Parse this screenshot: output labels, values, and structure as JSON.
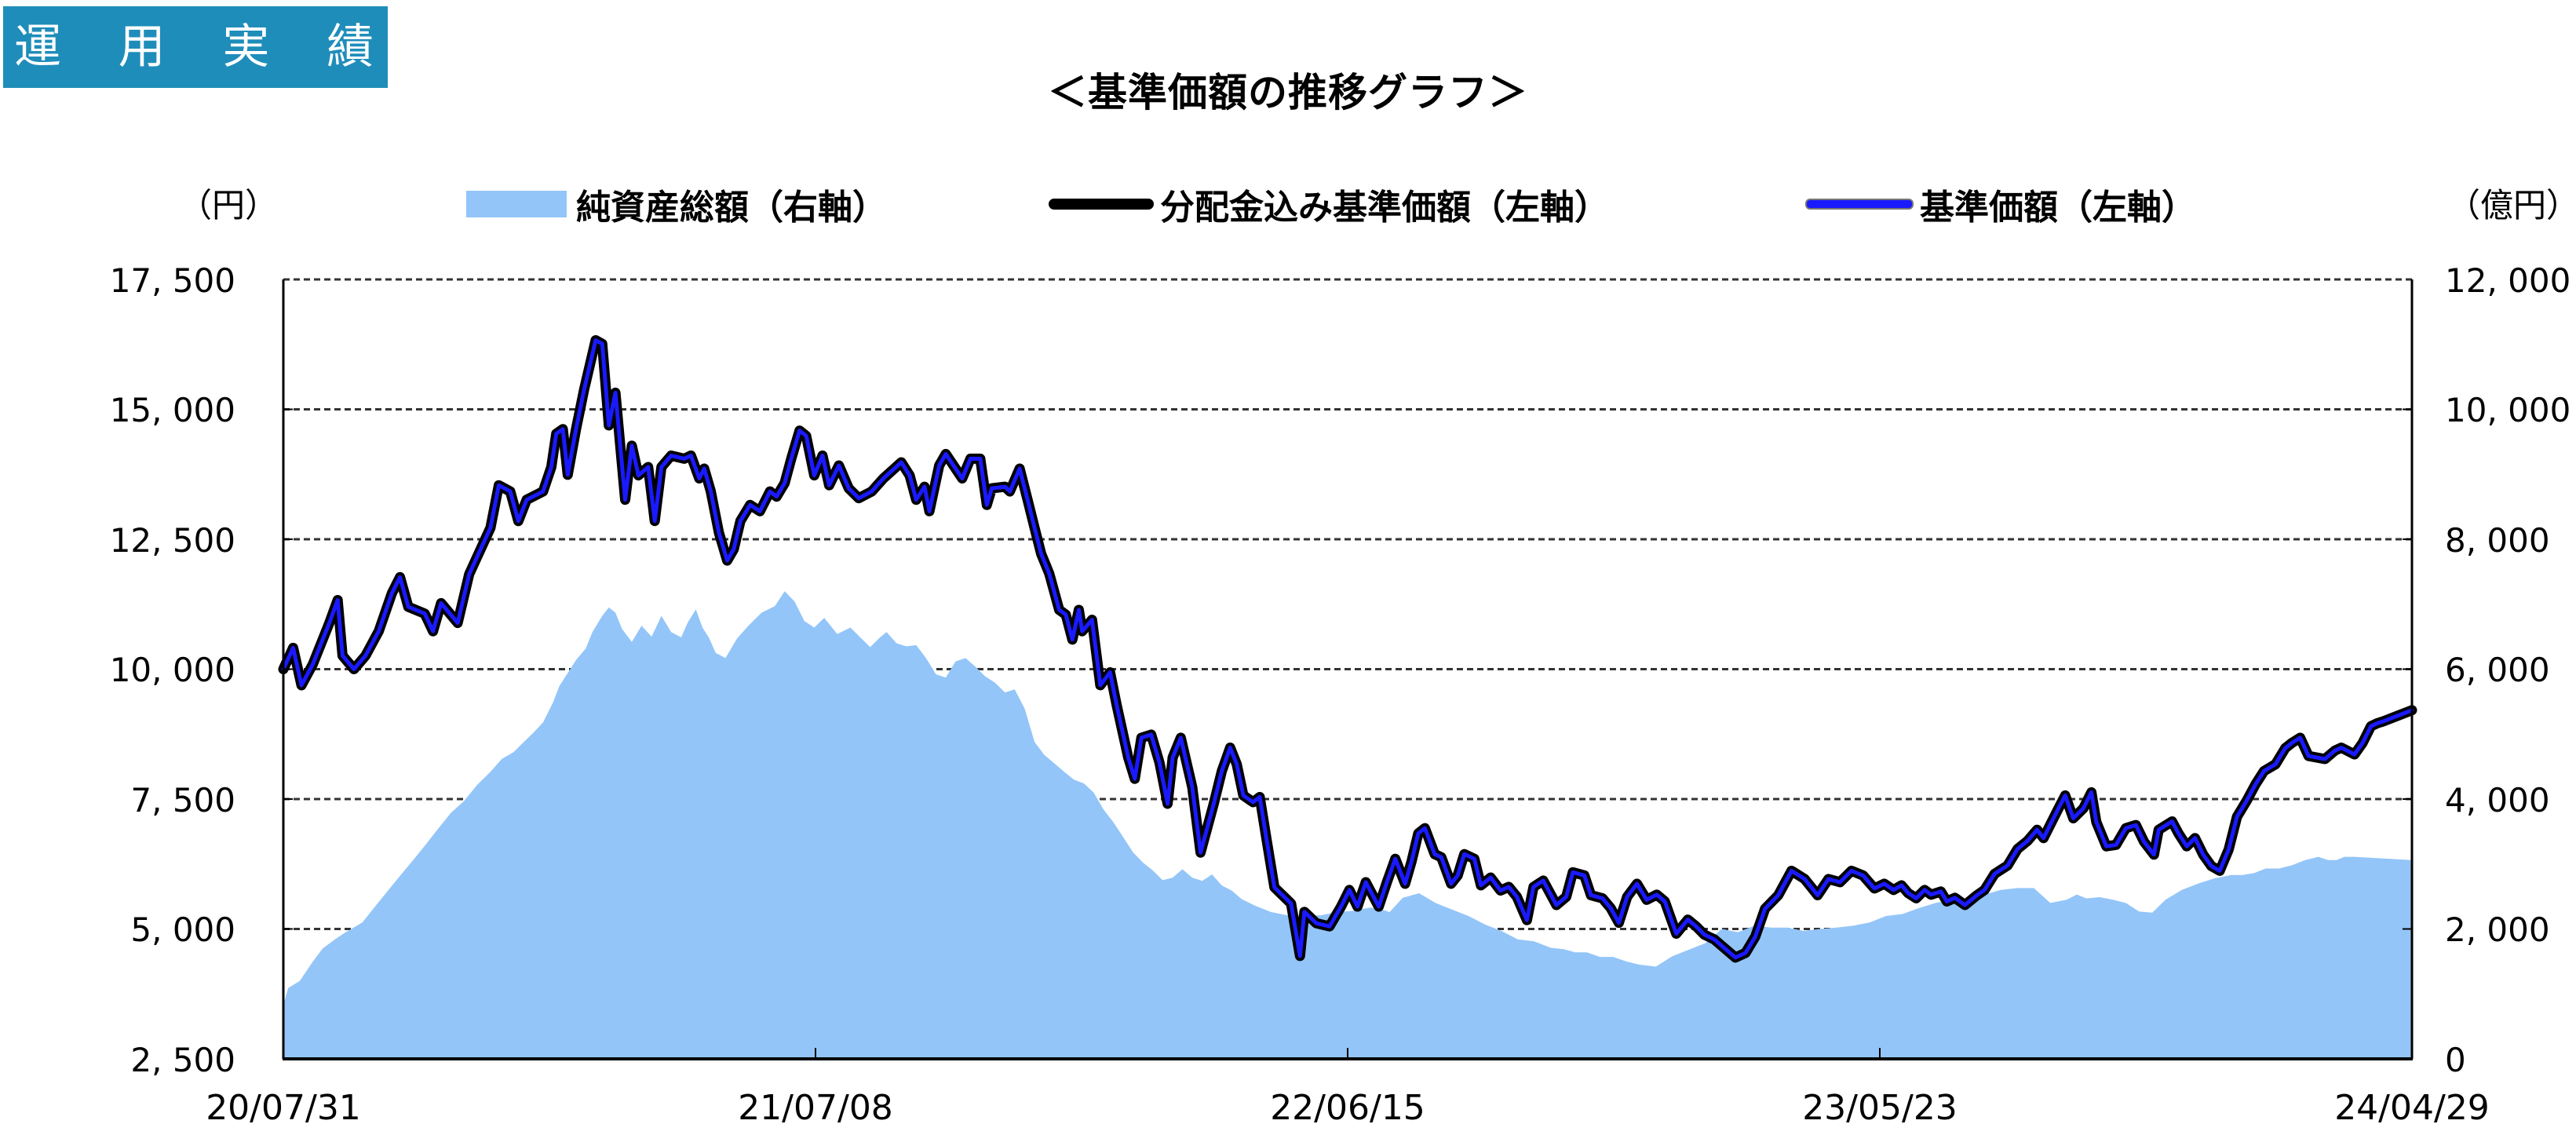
{
  "header": {
    "section_title_chars": [
      "運",
      "用",
      "実",
      "績"
    ]
  },
  "chart": {
    "title": "＜基準価額の推移グラフ＞",
    "left_unit": "（円）",
    "right_unit": "（億円）",
    "legend": [
      {
        "label": "純資産総額（右軸）",
        "type": "area",
        "color": "#93c5f8"
      },
      {
        "label": "分配金込み基準価額（左軸）",
        "type": "line",
        "color": "#000000"
      },
      {
        "label": "基準価額（左軸）",
        "type": "line",
        "color": "#1a1aff"
      }
    ],
    "left_ticks": [
      "17, 500",
      "15, 000",
      "12, 500",
      "10, 000",
      "7, 500",
      "5, 000",
      "2, 500"
    ],
    "right_ticks": [
      "12, 000",
      "10, 000",
      "8, 000",
      "6, 000",
      "4, 000",
      "2, 000",
      "0"
    ],
    "x_ticks": [
      "20/07/31",
      "21/07/08",
      "22/06/15",
      "23/05/23",
      "24/04/29"
    ]
  },
  "chart_data": {
    "type": "line",
    "title": "＜基準価額の推移グラフ＞",
    "xlabel": "",
    "ylabel": "円",
    "ylabel_right": "億円",
    "ylim": [
      2500,
      17500
    ],
    "ylim_right": [
      0,
      12000
    ],
    "grid": true,
    "legend_position": "top",
    "categories": [
      "20/07/31",
      "21/07/08",
      "22/06/15",
      "23/05/23",
      "24/04/29"
    ],
    "series": [
      {
        "name": "基準価額（左軸）",
        "also_represents": "分配金込み基準価額（左軸）",
        "axis": "left",
        "x_frac": [
          0,
          0.0046,
          0.0085,
          0.0139,
          0.0216,
          0.0255,
          0.0278,
          0.0332,
          0.0386,
          0.0448,
          0.051,
          0.0548,
          0.0587,
          0.0664,
          0.0703,
          0.0741,
          0.0819,
          0.0873,
          0.0927,
          0.0973,
          0.1012,
          0.1066,
          0.1104,
          0.1143,
          0.122,
          0.1259,
          0.1282,
          0.1313,
          0.1336,
          0.1375,
          0.1413,
          0.1467,
          0.1498,
          0.1529,
          0.156,
          0.1606,
          0.1637,
          0.1668,
          0.1714,
          0.1745,
          0.1776,
          0.1822,
          0.1884,
          0.1915,
          0.1954,
          0.1977,
          0.2008,
          0.2046,
          0.2085,
          0.2116,
          0.2147,
          0.2193,
          0.2239,
          0.2286,
          0.2317,
          0.2355,
          0.2386,
          0.2425,
          0.2456,
          0.2494,
          0.2533,
          0.2564,
          0.261,
          0.2656,
          0.2703,
          0.2764,
          0.2819,
          0.2903,
          0.2942,
          0.2973,
          0.3012,
          0.3035,
          0.3081,
          0.3112,
          0.3189,
          0.3228,
          0.3274,
          0.3305,
          0.3328,
          0.339,
          0.3413,
          0.3459,
          0.3498,
          0.3529,
          0.356,
          0.3598,
          0.3645,
          0.3676,
          0.3707,
          0.3737,
          0.3753,
          0.3799,
          0.3838,
          0.3884,
          0.3915,
          0.3969,
          0.4,
          0.4031,
          0.4077,
          0.4116,
          0.4154,
          0.4178,
          0.4216,
          0.427,
          0.4309,
          0.4371,
          0.4409,
          0.4448,
          0.4479,
          0.451,
          0.4556,
          0.4587,
          0.4618,
          0.4656,
          0.4734,
          0.4776,
          0.4797,
          0.4853,
          0.4915,
          0.4969,
          0.5008,
          0.5046,
          0.5085,
          0.5146,
          0.5185,
          0.5224,
          0.527,
          0.5301,
          0.5332,
          0.5363,
          0.5409,
          0.544,
          0.5486,
          0.5517,
          0.5548,
          0.5595,
          0.5626,
          0.5672,
          0.5718,
          0.5757,
          0.5795,
          0.5842,
          0.5873,
          0.5919,
          0.5981,
          0.6027,
          0.6058,
          0.6112,
          0.6143,
          0.6197,
          0.6236,
          0.6274,
          0.6313,
          0.6359,
          0.6405,
          0.6452,
          0.649,
          0.6544,
          0.6598,
          0.6637,
          0.6676,
          0.6722,
          0.6776,
          0.6822,
          0.6869,
          0.6915,
          0.6961,
          0.7023,
          0.7085,
          0.7147,
          0.7208,
          0.7259,
          0.7313,
          0.7367,
          0.7421,
          0.7475,
          0.7521,
          0.7564,
          0.7602,
          0.7633,
          0.7671,
          0.771,
          0.7741,
          0.7787,
          0.7815,
          0.7853,
          0.79,
          0.7954,
          0.7992,
          0.8039,
          0.81,
          0.8147,
          0.8193,
          0.8239,
          0.8269,
          0.8332,
          0.8371,
          0.8409,
          0.8456,
          0.8494,
          0.8517,
          0.8564,
          0.861,
          0.8656,
          0.8703,
          0.8741,
          0.8788,
          0.881,
          0.8873,
          0.8903,
          0.8942,
          0.8981,
          0.9019,
          0.9058,
          0.9097,
          0.9139,
          0.9178,
          0.9224,
          0.9266,
          0.9305,
          0.9359,
          0.9405,
          0.9436,
          0.9475,
          0.9514,
          0.9591,
          0.9637,
          0.9668,
          0.973,
          0.9768,
          0.9807,
          0.9838,
          0.9861,
          1.0
        ],
        "values": [
          10000,
          10410,
          9690,
          10100,
          10890,
          11330,
          10260,
          10000,
          10260,
          10730,
          11460,
          11770,
          11200,
          11070,
          10730,
          11270,
          10890,
          11830,
          12310,
          12720,
          13540,
          13420,
          12850,
          13260,
          13420,
          13890,
          14530,
          14620,
          13740,
          14620,
          15380,
          16330,
          16260,
          14690,
          15320,
          13260,
          14300,
          13730,
          13890,
          12850,
          13890,
          14110,
          14050,
          14110,
          13670,
          13860,
          13420,
          12630,
          12090,
          12310,
          12850,
          13160,
          13040,
          13420,
          13320,
          13580,
          14050,
          14590,
          14490,
          13730,
          14110,
          13540,
          13920,
          13480,
          13290,
          13420,
          13670,
          13980,
          13730,
          13260,
          13510,
          13040,
          13920,
          14140,
          13670,
          14050,
          14050,
          13160,
          13480,
          13510,
          13420,
          13860,
          13230,
          12720,
          12220,
          11840,
          11140,
          11050,
          10570,
          11140,
          10730,
          10950,
          9690,
          9940,
          9310,
          8300,
          7890,
          8680,
          8740,
          8200,
          7410,
          8300,
          8680,
          7730,
          6470,
          7410,
          8040,
          8490,
          8170,
          7570,
          7440,
          7540,
          6750,
          5800,
          5490,
          4480,
          5330,
          5110,
          5050,
          5430,
          5750,
          5430,
          5900,
          5430,
          5910,
          6350,
          5870,
          6310,
          6840,
          6940,
          6440,
          6380,
          5870,
          6030,
          6440,
          6350,
          5840,
          5990,
          5740,
          5810,
          5620,
          5170,
          5810,
          5930,
          5460,
          5620,
          6090,
          6030,
          5650,
          5590,
          5400,
          5120,
          5620,
          5870,
          5560,
          5660,
          5530,
          4910,
          5180,
          5050,
          4890,
          4800,
          4610,
          4450,
          4540,
          4850,
          5390,
          5650,
          6120,
          5960,
          5650,
          5960,
          5900,
          6120,
          6030,
          5780,
          5870,
          5750,
          5840,
          5690,
          5590,
          5750,
          5660,
          5720,
          5530,
          5600,
          5460,
          5640,
          5750,
          6060,
          6220,
          6540,
          6690,
          6910,
          6750,
          7260,
          7570,
          7130,
          7320,
          7630,
          7060,
          6590,
          6620,
          6940,
          7000,
          6680,
          6430,
          6910,
          7070,
          6840,
          6590,
          6750,
          6430,
          6210,
          6120,
          6530,
          7160,
          7470,
          7790,
          8040,
          8170,
          8480,
          8580,
          8680,
          8330,
          8270,
          8430,
          8490,
          8360,
          8580,
          8900,
          8960,
          8990,
          9210,
          9310,
          9310,
          9380,
          9450,
          9530,
          9400,
          9470,
          9250,
          9150,
          8930,
          8840,
          9090,
          9150
        ]
      },
      {
        "name": "純資産総額（右軸）",
        "axis": "right",
        "x_frac": [
          0,
          0.0023,
          0.0077,
          0.0139,
          0.0185,
          0.0247,
          0.0293,
          0.0371,
          0.0432,
          0.0494,
          0.0556,
          0.0602,
          0.0664,
          0.0726,
          0.0788,
          0.0849,
          0.0911,
          0.0973,
          0.1027,
          0.1081,
          0.1127,
          0.1174,
          0.122,
          0.1266,
          0.1297,
          0.1336,
          0.1375,
          0.1421,
          0.1452,
          0.1498,
          0.1529,
          0.156,
          0.1591,
          0.1637,
          0.1683,
          0.173,
          0.1776,
          0.1822,
          0.1869,
          0.19,
          0.1938,
          0.1969,
          0.2,
          0.2031,
          0.2077,
          0.2131,
          0.2185,
          0.2247,
          0.2309,
          0.2355,
          0.2402,
          0.2448,
          0.2494,
          0.2541,
          0.2602,
          0.2664,
          0.271,
          0.2757,
          0.2803,
          0.2834,
          0.288,
          0.2927,
          0.2973,
          0.3019,
          0.3066,
          0.3112,
          0.3158,
          0.3205,
          0.3251,
          0.3297,
          0.3344,
          0.339,
          0.3436,
          0.3483,
          0.3529,
          0.3575,
          0.3622,
          0.3668,
          0.3714,
          0.3761,
          0.3807,
          0.3853,
          0.39,
          0.3946,
          0.3992,
          0.4039,
          0.4085,
          0.4131,
          0.4178,
          0.4224,
          0.427,
          0.4317,
          0.4363,
          0.4409,
          0.4456,
          0.4502,
          0.4564,
          0.4641,
          0.4718,
          0.4795,
          0.4873,
          0.495,
          0.5027,
          0.5104,
          0.5151,
          0.5197,
          0.5259,
          0.5336,
          0.5413,
          0.549,
          0.5568,
          0.5645,
          0.5722,
          0.5799,
          0.5876,
          0.5954,
          0.6015,
          0.6069,
          0.6124,
          0.6185,
          0.6247,
          0.6309,
          0.6371,
          0.6448,
          0.6525,
          0.6602,
          0.668,
          0.6757,
          0.6834,
          0.6911,
          0.6988,
          0.7066,
          0.7143,
          0.722,
          0.7297,
          0.7375,
          0.7452,
          0.7529,
          0.7606,
          0.7683,
          0.7761,
          0.7838,
          0.7915,
          0.7992,
          0.8069,
          0.8147,
          0.8224,
          0.8301,
          0.8378,
          0.8425,
          0.8471,
          0.8533,
          0.8595,
          0.8656,
          0.8718,
          0.878,
          0.8842,
          0.8919,
          0.8996,
          0.9073,
          0.9151,
          0.9205,
          0.9259,
          0.9313,
          0.9375,
          0.9436,
          0.9498,
          0.956,
          0.9606,
          0.9645,
          0.9683,
          0.973,
          1.0
        ],
        "values": [
          830,
          1090,
          1200,
          1500,
          1700,
          1850,
          1950,
          2100,
          2350,
          2600,
          2850,
          3030,
          3280,
          3540,
          3790,
          3970,
          4220,
          4420,
          4620,
          4720,
          4870,
          5020,
          5180,
          5480,
          5740,
          5940,
          6140,
          6320,
          6570,
          6820,
          6950,
          6870,
          6620,
          6420,
          6670,
          6500,
          6820,
          6570,
          6490,
          6720,
          6920,
          6640,
          6480,
          6250,
          6170,
          6470,
          6670,
          6870,
          6970,
          7200,
          7040,
          6740,
          6640,
          6790,
          6540,
          6640,
          6490,
          6340,
          6490,
          6570,
          6400,
          6350,
          6370,
          6170,
          5920,
          5870,
          6120,
          6170,
          6040,
          5890,
          5790,
          5640,
          5690,
          5390,
          4880,
          4680,
          4550,
          4420,
          4300,
          4240,
          4100,
          3840,
          3640,
          3410,
          3180,
          3020,
          2900,
          2750,
          2790,
          2920,
          2790,
          2740,
          2840,
          2670,
          2590,
          2460,
          2360,
          2260,
          2210,
          2210,
          2210,
          2260,
          2280,
          2330,
          2310,
          2260,
          2480,
          2550,
          2400,
          2300,
          2200,
          2070,
          1970,
          1840,
          1810,
          1710,
          1690,
          1640,
          1640,
          1570,
          1570,
          1500,
          1450,
          1420,
          1580,
          1680,
          1780,
          2000,
          1950,
          2050,
          2020,
          2020,
          1970,
          2000,
          2020,
          2050,
          2100,
          2200,
          2230,
          2320,
          2400,
          2450,
          2450,
          2530,
          2600,
          2630,
          2630,
          2400,
          2450,
          2530,
          2470,
          2490,
          2450,
          2400,
          2270,
          2250,
          2450,
          2600,
          2700,
          2780,
          2830,
          2830,
          2860,
          2930,
          2930,
          2980,
          3060,
          3110,
          3060,
          3060,
          3110,
          3110,
          3060,
          2930,
          2980
        ]
      }
    ]
  }
}
